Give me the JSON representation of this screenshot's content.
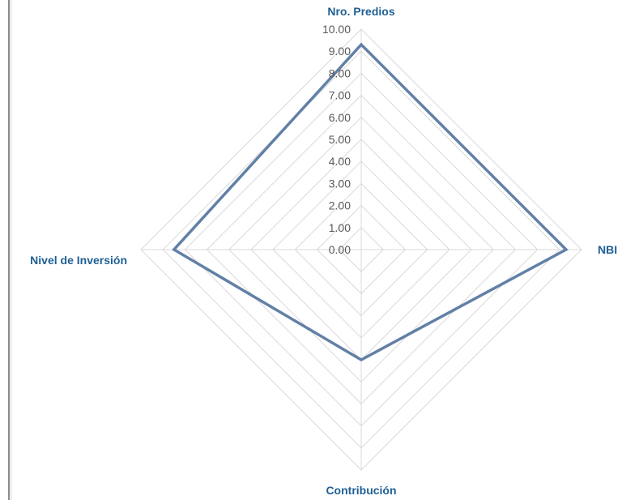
{
  "chart_data": {
    "type": "radar",
    "axes": [
      "Nro. Predios",
      "NBI",
      "Contribución",
      "Nivel de Inversión"
    ],
    "series": [
      {
        "values": [
          9.3,
          9.3,
          5.0,
          8.5
        ]
      }
    ],
    "rlim": [
      0,
      10
    ],
    "ticks": [
      "0.00",
      "1.00",
      "2.00",
      "3.00",
      "4.00",
      "5.00",
      "6.00",
      "7.00",
      "8.00",
      "9.00",
      "10.00"
    ],
    "grid": true,
    "legend": "none",
    "colors": {
      "series": "#6280a6",
      "grid": "#d9d9d9",
      "axis_label": "#1f5f95",
      "tick_label": "#595959"
    }
  }
}
